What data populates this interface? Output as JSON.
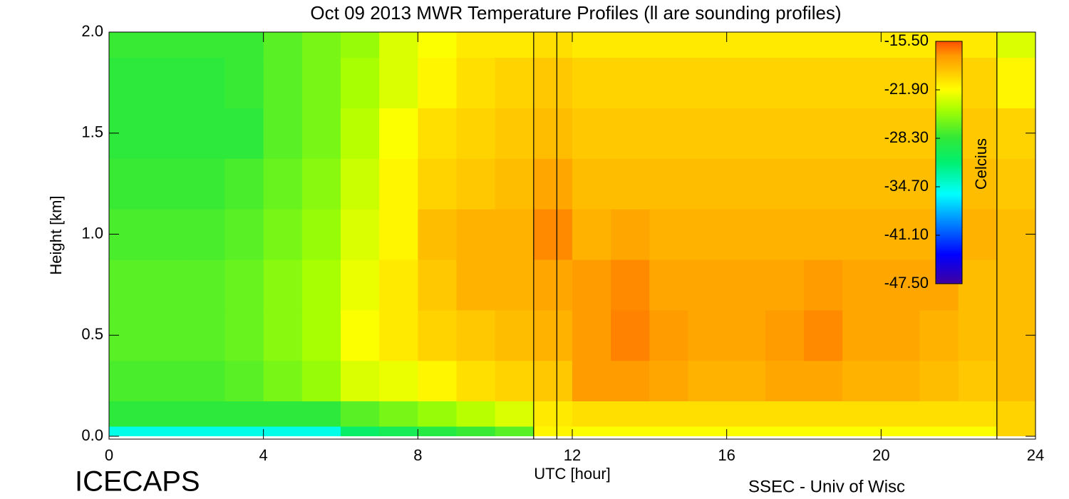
{
  "chart_data": {
    "type": "heatmap",
    "title": "Oct 09 2013 MWR Temperature Profiles (ll are sounding profiles)",
    "x_label": "UTC [hour]",
    "y_label": "Height [km]",
    "colorbar_label": "Celcius",
    "left_footer": "ICECAPS",
    "right_footer": "SSEC - Univ of Wisc",
    "x": [
      0.5,
      1.5,
      2.5,
      3.5,
      4.5,
      5.5,
      6.5,
      7.5,
      8.5,
      9.5,
      10.5,
      11.5,
      12.5,
      13.5,
      14.5,
      15.5,
      16.5,
      17.5,
      18.5,
      19.5,
      20.5,
      21.5,
      22.5,
      23.5
    ],
    "y": [
      0.0,
      0.1,
      0.25,
      0.5,
      0.75,
      1.0,
      1.25,
      1.5,
      1.75,
      2.0
    ],
    "z": [
      [
        -35,
        -35,
        -35,
        -35,
        -35,
        -35,
        -31,
        -30,
        -29,
        -28,
        -27,
        -21.5,
        -22,
        -22,
        -22,
        -22,
        -22,
        -22,
        -22,
        -22,
        -22,
        -22,
        -22,
        -20
      ],
      [
        -28.5,
        -28.5,
        -28.5,
        -28.5,
        -28.5,
        -28.5,
        -27,
        -26,
        -25,
        -24,
        -23,
        -21,
        -20.5,
        -20.5,
        -20.5,
        -20.5,
        -20.5,
        -20.5,
        -20.5,
        -20.5,
        -20.5,
        -20.5,
        -20.5,
        -20
      ],
      [
        -27.5,
        -27.5,
        -27.5,
        -27,
        -26,
        -25,
        -23,
        -22.5,
        -21.5,
        -20.5,
        -20,
        -19.5,
        -17.5,
        -17.5,
        -18,
        -18.5,
        -18.5,
        -18,
        -18,
        -18.5,
        -18.5,
        -19,
        -19.5,
        -19
      ],
      [
        -27,
        -27,
        -27,
        -26.5,
        -25.5,
        -24.5,
        -22,
        -21,
        -20,
        -19.5,
        -19,
        -18.5,
        -17.5,
        -16.8,
        -17.5,
        -18,
        -18,
        -17.5,
        -17,
        -18,
        -18,
        -18.5,
        -19,
        -19
      ],
      [
        -27,
        -27,
        -27,
        -26.5,
        -25.5,
        -24.5,
        -22.5,
        -21,
        -19.5,
        -18.5,
        -18.5,
        -18,
        -17.5,
        -17,
        -18,
        -18,
        -18,
        -18,
        -17.5,
        -18,
        -18,
        -18,
        -19,
        -19
      ],
      [
        -27.5,
        -27.5,
        -27.5,
        -27,
        -26,
        -25,
        -23,
        -21.5,
        -19,
        -18.5,
        -18.5,
        -17,
        -18.5,
        -18,
        -18.5,
        -18.5,
        -18.5,
        -18.5,
        -18.5,
        -18.5,
        -18.5,
        -18.5,
        -18.5,
        -19
      ],
      [
        -28,
        -28,
        -28,
        -27.5,
        -26.5,
        -25.5,
        -23.5,
        -21.5,
        -20,
        -19.5,
        -19,
        -18,
        -19,
        -19,
        -19,
        -19,
        -19,
        -19,
        -19,
        -19,
        -19,
        -19,
        -19,
        -19.5
      ],
      [
        -28.5,
        -28.5,
        -28.5,
        -28.5,
        -27,
        -26,
        -24,
        -22,
        -20.5,
        -20,
        -19.5,
        -19,
        -19.5,
        -19.5,
        -19.5,
        -19.5,
        -19.5,
        -19.5,
        -19.5,
        -19.5,
        -19.5,
        -19.5,
        -19.5,
        -20
      ],
      [
        -28.5,
        -28.5,
        -28.5,
        -28,
        -27,
        -26,
        -24.5,
        -23,
        -21.5,
        -20.5,
        -20,
        -19.5,
        -20,
        -20,
        -20,
        -20,
        -20,
        -20,
        -20,
        -20,
        -20,
        -20,
        -20,
        -21.5
      ],
      [
        -28,
        -28,
        -28,
        -28,
        -27,
        -26,
        -25,
        -23,
        -22,
        -21,
        -21,
        -20.5,
        -21,
        -21,
        -21,
        -21,
        -21,
        -21,
        -21,
        -21,
        -21,
        -21,
        -21,
        -23
      ]
    ],
    "sounding_lines": [
      11.0,
      11.6,
      23.0
    ],
    "xlim": [
      0,
      24
    ],
    "xticks": [
      0,
      4,
      8,
      12,
      16,
      20,
      24
    ],
    "ylim": [
      0,
      2
    ],
    "yticks": [
      {
        "value": 0,
        "label": "0.0"
      },
      {
        "value": 0.5,
        "label": "0.5"
      },
      {
        "value": 1,
        "label": "1.0"
      },
      {
        "value": 1.5,
        "label": "1.5"
      },
      {
        "value": 2,
        "label": "2.0"
      }
    ],
    "clim": [
      -47.5,
      -15.5
    ],
    "cticks": [
      {
        "value": -15.5,
        "label": "-15.50"
      },
      {
        "value": -21.9,
        "label": "-21.90"
      },
      {
        "value": -28.3,
        "label": "-28.30"
      },
      {
        "value": -34.7,
        "label": "-34.70"
      },
      {
        "value": -41.1,
        "label": "-41.10"
      },
      {
        "value": -47.5,
        "label": "-47.50"
      }
    ],
    "colormap": [
      [
        0,
        "#4000a0"
      ],
      [
        0.12,
        "#0000ff"
      ],
      [
        0.37,
        "#00ffff"
      ],
      [
        0.5,
        "#00f070"
      ],
      [
        0.6,
        "#30e838"
      ],
      [
        0.72,
        "#a8ff00"
      ],
      [
        0.8,
        "#ffff00"
      ],
      [
        0.88,
        "#ffc400"
      ],
      [
        0.94,
        "#ff9a00"
      ],
      [
        1,
        "#ff5000"
      ]
    ]
  }
}
